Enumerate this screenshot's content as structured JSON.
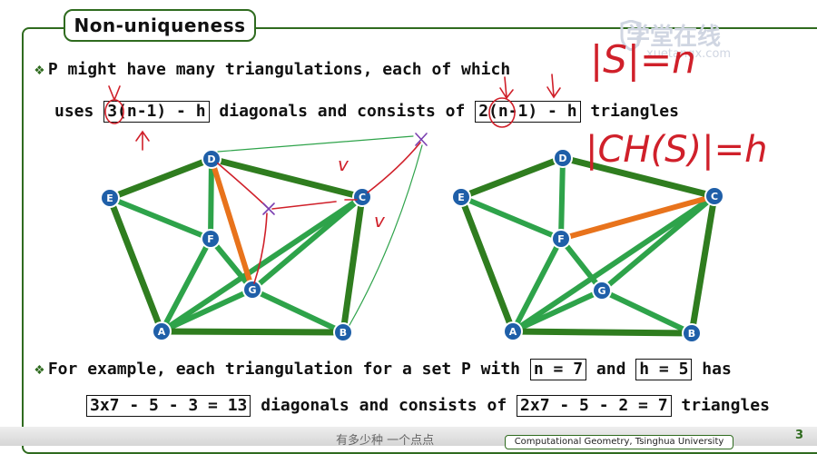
{
  "title": "Non-uniqueness",
  "watermark": {
    "cn": "学堂在线",
    "url": "xuetangx.com"
  },
  "bullet1": {
    "line1": "P might have many triangulations, each of which",
    "pre": "uses",
    "diag_formula": "3(n-1) - h",
    "mid": "diagonals and consists of",
    "tri_formula": "2(n-1) - h",
    "post": "triangles"
  },
  "bullet2": {
    "pre": "For example, each triangulation for a set P with",
    "n_eq": "n = 7",
    "and": "and",
    "h_eq": "h = 5",
    "has": "has",
    "diag_calc": "3x7 - 5 - 3 = 13",
    "mid": "diagonals and consists of",
    "tri_calc": "2x7 - 5 - 2 = 7",
    "post": "triangles"
  },
  "handwriting": {
    "note1": "|S|=n",
    "note2": "|CH(S)|=h",
    "mark_v1": "v",
    "mark_v2": "v"
  },
  "diagram_left": {
    "vertices": [
      "A",
      "B",
      "C",
      "D",
      "E",
      "F",
      "G"
    ]
  },
  "diagram_right": {
    "vertices": [
      "A",
      "B",
      "C",
      "D",
      "E",
      "F",
      "G"
    ]
  },
  "footer": {
    "subtitle": "有多少种   一个点点",
    "label": "Computational Geometry, Tsinghua University",
    "page": "3"
  },
  "colors": {
    "hull": "#2f7d1f",
    "diagonal": "#2ea34a",
    "highlight": "#e8731c",
    "vertex": "#1f5fa8",
    "ink": "#d0202a"
  }
}
